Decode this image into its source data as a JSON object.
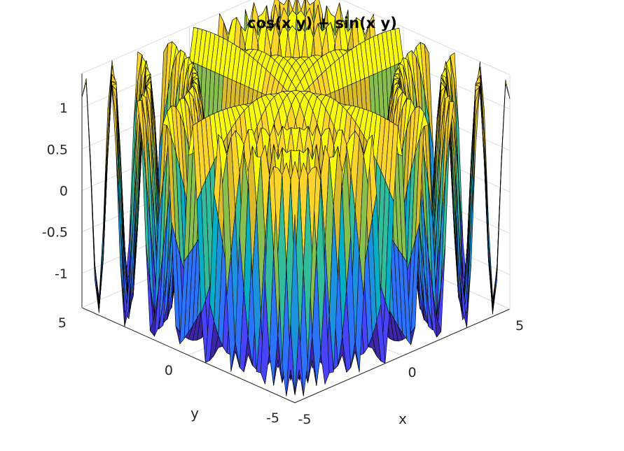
{
  "chart_data": {
    "type": "surface",
    "title": "cos(x y) + sin(x y)",
    "xlabel": "x",
    "ylabel": "y",
    "zlabel": "",
    "function": "cos(x y) + sin(x y)",
    "xlim": [
      -5,
      5
    ],
    "ylim": [
      -5,
      5
    ],
    "zlim": [
      -1.4142,
      1.4142
    ],
    "x_ticks": [
      "-5",
      "0",
      "5"
    ],
    "y_ticks": [
      "-5",
      "0",
      "5"
    ],
    "z_ticks": [
      "-1",
      "-0.5",
      "0",
      "0.5",
      "1"
    ],
    "x_tick_values": [
      -5,
      0,
      5
    ],
    "y_tick_values": [
      -5,
      0,
      5
    ],
    "z_tick_values": [
      -1,
      -0.5,
      0,
      0.5,
      1
    ],
    "colormap": "parula",
    "grid": true,
    "mesh_edges": "black"
  },
  "colors": {
    "parula": [
      "#3e26a8",
      "#4743f8",
      "#2c72fa",
      "#1d92dc",
      "#04aec4",
      "#33bc9b",
      "#88bf4f",
      "#d9bb2c",
      "#fcd52c",
      "#f9fb0e"
    ]
  }
}
